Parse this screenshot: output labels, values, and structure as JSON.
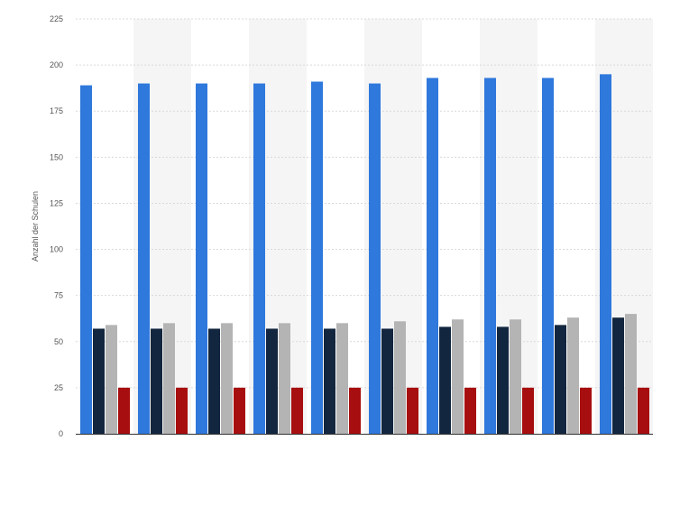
{
  "chart_data": {
    "type": "bar",
    "title": "",
    "xlabel": "",
    "ylabel": "Anzahl der Schulen",
    "ylim": [
      0,
      225
    ],
    "y_ticks": [
      0,
      25,
      50,
      75,
      100,
      125,
      150,
      175,
      200,
      225
    ],
    "grid": true,
    "legend": "none",
    "categories": [
      "",
      "",
      "",
      "",
      "",
      "",
      "",
      "",
      "",
      ""
    ],
    "series": [
      {
        "color": "#2f78dc",
        "values": [
          189,
          190,
          190,
          190,
          191,
          190,
          193,
          193,
          193,
          195
        ]
      },
      {
        "color": "#13263f",
        "values": [
          57,
          57,
          57,
          57,
          57,
          57,
          58,
          58,
          59,
          63
        ]
      },
      {
        "color": "#b4b4b4",
        "values": [
          59,
          60,
          60,
          60,
          60,
          61,
          62,
          62,
          63,
          65
        ]
      },
      {
        "color": "#a70e0f",
        "values": [
          25,
          25,
          25,
          25,
          25,
          25,
          25,
          25,
          25,
          25
        ]
      }
    ],
    "colors": {
      "band": "#f5f5f5",
      "grid": "#d9d9d9",
      "baseline": "#333333"
    }
  }
}
